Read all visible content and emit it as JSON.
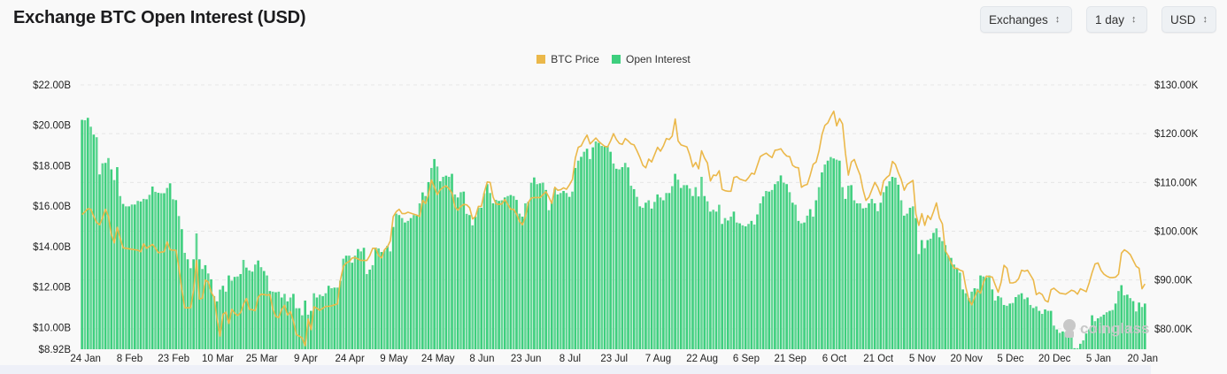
{
  "header": {
    "title": "Exchange BTC Open Interest (USD)"
  },
  "controls": {
    "exchange_select": "Exchanges",
    "interval_select": "1 day",
    "currency_select": "USD"
  },
  "legend": [
    {
      "label": "BTC Price",
      "color": "#ebb84a"
    },
    {
      "label": "Open Interest",
      "color": "#3ecf7e"
    }
  ],
  "watermark": "coinglass",
  "chart_data": {
    "type": "bar+line",
    "title": "Exchange BTC Open Interest (USD)",
    "grid": true,
    "legend_position": "top-center",
    "x_tick_labels": [
      "24 Jan",
      "8 Feb",
      "23 Feb",
      "10 Mar",
      "25 Mar",
      "9 Apr",
      "24 Apr",
      "9 May",
      "24 May",
      "8 Jun",
      "23 Jun",
      "8 Jul",
      "23 Jul",
      "7 Aug",
      "22 Aug",
      "6 Sep",
      "21 Sep",
      "6 Oct",
      "21 Oct",
      "5 Nov",
      "20 Nov",
      "5 Dec",
      "20 Dec",
      "5 Jan",
      "20 Jan"
    ],
    "x_tick_interval_days": 15,
    "y_left": {
      "unit": "USD billions",
      "range": [
        8.92,
        22
      ],
      "tick_labels": [
        "$22.00B",
        "$20.00B",
        "$18.00B",
        "$16.00B",
        "$14.00B",
        "$12.00B",
        "$10.00B",
        "$8.92B"
      ],
      "ticks": [
        22,
        20,
        18,
        16,
        14,
        12,
        10,
        8.92
      ]
    },
    "y_right": {
      "unit": "USD thousands",
      "range": [
        75.8,
        130
      ],
      "tick_labels": [
        "$130.00K",
        "$120.00K",
        "$110.00K",
        "$100.00K",
        "$90.00K",
        "$80.00K"
      ],
      "ticks": [
        130,
        120,
        110,
        100,
        90,
        80
      ]
    },
    "series": [
      {
        "name": "Open Interest",
        "type": "bar",
        "axis": "left",
        "color": "#3ecf7e",
        "values": [
          20.27,
          20.25,
          20.37,
          19.93,
          19.54,
          19.41,
          17.57,
          18.12,
          18.14,
          18.38,
          17.82,
          17.29,
          17.93,
          16.5,
          16.11,
          15.99,
          15.99,
          16.08,
          16.08,
          16.26,
          16.23,
          16.36,
          16.34,
          16.56,
          16.97,
          16.71,
          16.66,
          16.64,
          16.64,
          16.9,
          17.13,
          16.34,
          16.3,
          15.51,
          14.86,
          13.69,
          13.37,
          12.93,
          13.37,
          14.65,
          13.37,
          12.89,
          13.08,
          12.67,
          12.38,
          11.55,
          11.29,
          11.87,
          12.06,
          11.77,
          12.57,
          12.31,
          12.5,
          12.52,
          12.64,
          13.34,
          12.96,
          12.82,
          12.76,
          13.11,
          13.31,
          12.98,
          12.79,
          12.57,
          11.8,
          11.77,
          11.74,
          11.77,
          11.48,
          11.66,
          11.29,
          11.48,
          11.66,
          10.95,
          10.95,
          10.6,
          11.33,
          10.63,
          10.82,
          11.69,
          11.48,
          11.62,
          11.55,
          11.69,
          12.06,
          11.94,
          11.97,
          11.97,
          12.31,
          13.4,
          13.55,
          13.55,
          13.2,
          13.55,
          13.88,
          13.76,
          13.94,
          12.64,
          12.86,
          13.08,
          13.95,
          13.91,
          13.73,
          13.81,
          14.03,
          13.76,
          14.97,
          15.63,
          15.56,
          15.41,
          15.19,
          15.27,
          15.41,
          15.56,
          15.53,
          16.14,
          16.68,
          16.5,
          17.19,
          17.89,
          18.33,
          17.96,
          17.23,
          17.45,
          17.51,
          17.45,
          17.6,
          16.58,
          16.43,
          16.69,
          16.72,
          15.62,
          15.56,
          15.05,
          15.48,
          15.92,
          15.92,
          16.64,
          17.09,
          16.65,
          16.14,
          16.31,
          16.26,
          16.29,
          16.43,
          16.5,
          16.55,
          16.5,
          16.31,
          15.63,
          15.48,
          16.14,
          16.21,
          17.16,
          17.42,
          17.09,
          17.13,
          17.16,
          16.8,
          15.8,
          16.24,
          16.87,
          16.58,
          16.65,
          16.75,
          16.65,
          16.46,
          16.72,
          17.89,
          18.25,
          18.44,
          18.69,
          18.84,
          18.33,
          18.91,
          19.2,
          19.13,
          18.98,
          18.94,
          18.98,
          18.69,
          18.11,
          17.85,
          17.82,
          17.93,
          18.14,
          17.92,
          17.01,
          16.84,
          16.46,
          15.99,
          15.92,
          16.17,
          16.29,
          15.88,
          16.21,
          16.58,
          16.43,
          16.29,
          16.65,
          16.65,
          16.99,
          17.6,
          17.31,
          16.9,
          17.04,
          17.04,
          16.87,
          16.5,
          16.94,
          16.48,
          17.45,
          16.5,
          16.24,
          15.73,
          15.82,
          15.73,
          16.07,
          15.12,
          15.41,
          15.29,
          15.48,
          15.73,
          15.19,
          15.15,
          15.05,
          15.0,
          15.12,
          15.27,
          15.09,
          15.59,
          16.14,
          16.48,
          16.75,
          16.72,
          16.8,
          17.09,
          17.23,
          17.52,
          17.16,
          17.09,
          16.69,
          16.17,
          16.07,
          15.27,
          15.15,
          15.19,
          15.53,
          15.85,
          15.48,
          16.29,
          16.94,
          17.67,
          18.06,
          18.25,
          18.43,
          18.36,
          18.3,
          18.25,
          16.94,
          16.36,
          17.01,
          17.04,
          16.29,
          16.14,
          16.14,
          15.89,
          15.92,
          16.14,
          16.36,
          16.14,
          15.75,
          16.17,
          16.69,
          16.99,
          17.23,
          17.45,
          17.41,
          17.06,
          16.29,
          15.53,
          15.63,
          15.92,
          15.99,
          15.41,
          13.63,
          14.32,
          13.92,
          14.32,
          14.39,
          14.68,
          14.9,
          14.46,
          14.27,
          14.07,
          13.55,
          13.44,
          13.11,
          12.93,
          12.71,
          11.88,
          11.69,
          11.45,
          11.77,
          11.94,
          11.91,
          12.57,
          12.52,
          12.47,
          12.57,
          11.88,
          11.33,
          11.55,
          11.48,
          11.11,
          11.07,
          11.18,
          11.21,
          11.5,
          11.62,
          11.69,
          11.4,
          11.48,
          11.11,
          10.96,
          11.04,
          10.82,
          10.67,
          10.89,
          10.82,
          10.82,
          10.09,
          9.9,
          9.73,
          9.8,
          9.76,
          9.73,
          9.65,
          8.97,
          8.97,
          9.19,
          9.36,
          9.7,
          9.9,
          10.6,
          10.31,
          10.45,
          10.53,
          10.63,
          10.75,
          10.82,
          10.86,
          11.18,
          11.8,
          12.09,
          11.59,
          11.62,
          11.45,
          11.3,
          10.79,
          11.23,
          11.01,
          11.18
        ]
      },
      {
        "name": "BTC Price",
        "type": "line",
        "axis": "right",
        "color": "#ebb84a",
        "values": [
          103.4,
          104.0,
          104.6,
          104.5,
          103.0,
          101.8,
          101.3,
          102.8,
          104.5,
          103.0,
          99.3,
          97.6,
          100.8,
          98.5,
          96.6,
          96.5,
          96.4,
          96.3,
          96.2,
          96.1,
          95.8,
          97.4,
          96.5,
          96.9,
          97.3,
          96.5,
          95.6,
          95.7,
          95.8,
          97.8,
          96.2,
          96.1,
          96.1,
          92.5,
          88.0,
          84.3,
          84.3,
          84.3,
          88.0,
          94.0,
          86.1,
          86.3,
          90.0,
          89.6,
          87.5,
          86.4,
          82.0,
          78.5,
          83.0,
          83.4,
          81.1,
          84.0,
          83.2,
          82.7,
          83.3,
          85.0,
          86.2,
          84.0,
          83.9,
          83.7,
          86.5,
          87.1,
          87.0,
          86.9,
          87.0,
          84.0,
          82.5,
          82.3,
          84.0,
          84.8,
          82.8,
          83.5,
          81.5,
          78.8,
          78.5,
          78.1,
          76.5,
          82.0,
          79.8,
          84.5,
          84.2,
          83.8,
          84.2,
          84.6,
          84.6,
          84.7,
          84.9,
          85.1,
          90.0,
          92.8,
          93.5,
          93.8,
          94.5,
          94.6,
          94.3,
          94.0,
          94.0,
          94.0,
          95.0,
          96.5,
          96.5,
          95.0,
          94.5,
          96.2,
          96.8,
          98.0,
          103.0,
          104.0,
          104.5,
          103.6,
          103.6,
          103.9,
          103.7,
          103.5,
          103.3,
          103.0,
          106.3,
          105.7,
          107.5,
          110.5,
          109.0,
          107.5,
          108.5,
          109.0,
          109.3,
          108.7,
          107.8,
          105.0,
          104.3,
          105.1,
          105.5,
          105.4,
          104.8,
          102.5,
          103.0,
          105.1,
          105.1,
          108.0,
          110.1,
          110.0,
          107.0,
          105.6,
          105.5,
          105.6,
          106.5,
          105.5,
          104.5,
          104.5,
          103.5,
          102.0,
          101.3,
          103.0,
          105.9,
          106.8,
          106.9,
          106.9,
          106.9,
          107.5,
          108.1,
          107.0,
          105.7,
          109.0,
          108.4,
          108.5,
          108.9,
          108.6,
          109.5,
          110.6,
          115.0,
          117.2,
          117.5,
          118.7,
          119.7,
          117.9,
          118.5,
          119.1,
          118.4,
          117.9,
          117.4,
          117.3,
          118.5,
          120.0,
          118.8,
          118.0,
          117.8,
          119.0,
          118.5,
          117.9,
          117.7,
          116.5,
          115.1,
          113.5,
          113.0,
          114.8,
          114.2,
          115.7,
          117.2,
          116.4,
          117.5,
          119.0,
          118.8,
          119.5,
          123.0,
          118.5,
          117.7,
          117.5,
          117.3,
          115.6,
          113.2,
          114.1,
          112.8,
          116.5,
          115.0,
          114.0,
          110.3,
          111.5,
          111.4,
          112.4,
          108.6,
          108.3,
          108.2,
          108.2,
          111.0,
          111.2,
          110.7,
          110.5,
          110.3,
          111.0,
          111.9,
          111.7,
          113.5,
          115.3,
          115.7,
          116.0,
          115.5,
          115.1,
          116.6,
          116.7,
          116.9,
          116.0,
          115.4,
          115.3,
          113.5,
          113.1,
          113.0,
          109.0,
          109.4,
          109.6,
          111.5,
          113.7,
          114.2,
          116.5,
          119.8,
          121.7,
          122.2,
          123.5,
          124.6,
          121.6,
          123.1,
          122.0,
          116.0,
          111.5,
          114.2,
          114.7,
          113.0,
          111.5,
          108.5,
          106.3,
          107.0,
          108.5,
          110.0,
          109.0,
          107.4,
          110.3,
          111.0,
          111.5,
          114.3,
          113.7,
          112.0,
          110.6,
          108.4,
          109.6,
          110.0,
          110.4,
          103.5,
          101.2,
          103.6,
          101.2,
          103.2,
          102.4,
          104.0,
          105.8,
          102.7,
          101.5,
          96.0,
          95.0,
          93.5,
          92.4,
          92.4,
          92.0,
          91.8,
          88.5,
          86.0,
          84.9,
          86.5,
          87.9,
          87.3,
          89.5,
          90.8,
          90.7,
          90.6,
          89.0,
          87.5,
          89.5,
          93.0,
          92.4,
          89.4,
          89.4,
          89.6,
          90.3,
          92.0,
          91.8,
          92.0,
          91.0,
          90.0,
          87.0,
          87.4,
          87.0,
          85.8,
          85.5,
          88.0,
          88.3,
          87.8,
          87.3,
          87.2,
          87.1,
          87.5,
          87.9,
          87.7,
          87.1,
          88.2,
          87.9,
          87.6,
          89.4,
          91.5,
          93.3,
          93.5,
          92.0,
          91.2,
          90.8,
          90.5,
          90.5,
          90.6,
          91.2,
          95.5,
          96.2,
          95.8,
          95.2,
          94.0,
          92.8,
          92.4,
          88.2,
          89.2
        ]
      }
    ]
  }
}
